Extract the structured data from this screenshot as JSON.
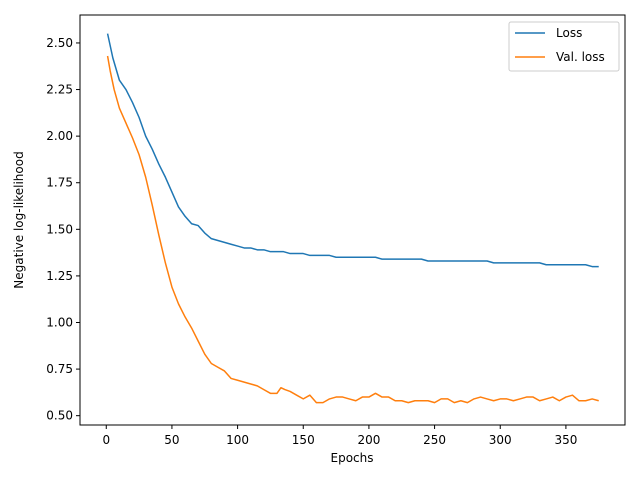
{
  "chart_data": {
    "type": "line",
    "xlabel": "Epochs",
    "ylabel": "Negative log-likelihood",
    "xlim": [
      -20,
      395
    ],
    "ylim": [
      0.45,
      2.65
    ],
    "x_ticks": [
      0,
      50,
      100,
      150,
      200,
      250,
      300,
      350
    ],
    "y_ticks": [
      0.5,
      0.75,
      1.0,
      1.25,
      1.5,
      1.75,
      2.0,
      2.25,
      2.5
    ],
    "x_tick_labels": [
      "0",
      "50",
      "100",
      "150",
      "200",
      "250",
      "300",
      "350"
    ],
    "y_tick_labels": [
      "0.50",
      "0.75",
      "1.00",
      "1.25",
      "1.50",
      "1.75",
      "2.00",
      "2.25",
      "2.50"
    ],
    "grid": false,
    "legend_position": "top-right",
    "series": [
      {
        "name": "Loss",
        "color": "#1f77b4",
        "x": [
          1,
          5,
          10,
          15,
          20,
          25,
          30,
          35,
          40,
          45,
          50,
          55,
          60,
          65,
          70,
          75,
          80,
          85,
          90,
          95,
          100,
          105,
          110,
          115,
          120,
          125,
          130,
          135,
          140,
          145,
          150,
          155,
          160,
          165,
          170,
          175,
          180,
          185,
          190,
          195,
          200,
          205,
          210,
          215,
          220,
          225,
          230,
          235,
          240,
          245,
          250,
          255,
          260,
          265,
          270,
          275,
          280,
          285,
          290,
          295,
          300,
          305,
          310,
          315,
          320,
          325,
          330,
          335,
          340,
          345,
          350,
          355,
          360,
          365,
          370,
          375
        ],
        "y": [
          2.55,
          2.42,
          2.3,
          2.25,
          2.18,
          2.1,
          2.0,
          1.93,
          1.85,
          1.78,
          1.7,
          1.62,
          1.57,
          1.53,
          1.52,
          1.48,
          1.45,
          1.44,
          1.43,
          1.42,
          1.41,
          1.4,
          1.4,
          1.39,
          1.39,
          1.38,
          1.38,
          1.38,
          1.37,
          1.37,
          1.37,
          1.36,
          1.36,
          1.36,
          1.36,
          1.35,
          1.35,
          1.35,
          1.35,
          1.35,
          1.35,
          1.35,
          1.34,
          1.34,
          1.34,
          1.34,
          1.34,
          1.34,
          1.34,
          1.33,
          1.33,
          1.33,
          1.33,
          1.33,
          1.33,
          1.33,
          1.33,
          1.33,
          1.33,
          1.32,
          1.32,
          1.32,
          1.32,
          1.32,
          1.32,
          1.32,
          1.32,
          1.31,
          1.31,
          1.31,
          1.31,
          1.31,
          1.31,
          1.31,
          1.3,
          1.3
        ]
      },
      {
        "name": "Val. loss",
        "color": "#ff7f0e",
        "x": [
          1,
          3,
          6,
          10,
          15,
          20,
          25,
          30,
          35,
          40,
          45,
          50,
          55,
          60,
          65,
          70,
          75,
          80,
          85,
          90,
          95,
          100,
          105,
          110,
          115,
          120,
          125,
          130,
          133,
          136,
          140,
          145,
          150,
          155,
          160,
          165,
          170,
          175,
          180,
          185,
          190,
          195,
          200,
          205,
          210,
          215,
          220,
          225,
          230,
          235,
          240,
          245,
          250,
          255,
          260,
          265,
          270,
          275,
          280,
          285,
          290,
          295,
          300,
          305,
          310,
          315,
          320,
          325,
          330,
          335,
          340,
          345,
          350,
          355,
          360,
          365,
          370,
          375
        ],
        "y": [
          2.43,
          2.35,
          2.25,
          2.15,
          2.07,
          1.99,
          1.9,
          1.78,
          1.63,
          1.47,
          1.32,
          1.19,
          1.1,
          1.03,
          0.97,
          0.9,
          0.83,
          0.78,
          0.76,
          0.74,
          0.7,
          0.69,
          0.68,
          0.67,
          0.66,
          0.64,
          0.62,
          0.62,
          0.65,
          0.64,
          0.63,
          0.61,
          0.59,
          0.61,
          0.57,
          0.57,
          0.59,
          0.6,
          0.6,
          0.59,
          0.58,
          0.6,
          0.6,
          0.62,
          0.6,
          0.6,
          0.58,
          0.58,
          0.57,
          0.58,
          0.58,
          0.58,
          0.57,
          0.59,
          0.59,
          0.57,
          0.58,
          0.57,
          0.59,
          0.6,
          0.59,
          0.58,
          0.59,
          0.59,
          0.58,
          0.59,
          0.6,
          0.6,
          0.58,
          0.59,
          0.6,
          0.58,
          0.6,
          0.61,
          0.58,
          0.58,
          0.59,
          0.58
        ]
      }
    ]
  }
}
